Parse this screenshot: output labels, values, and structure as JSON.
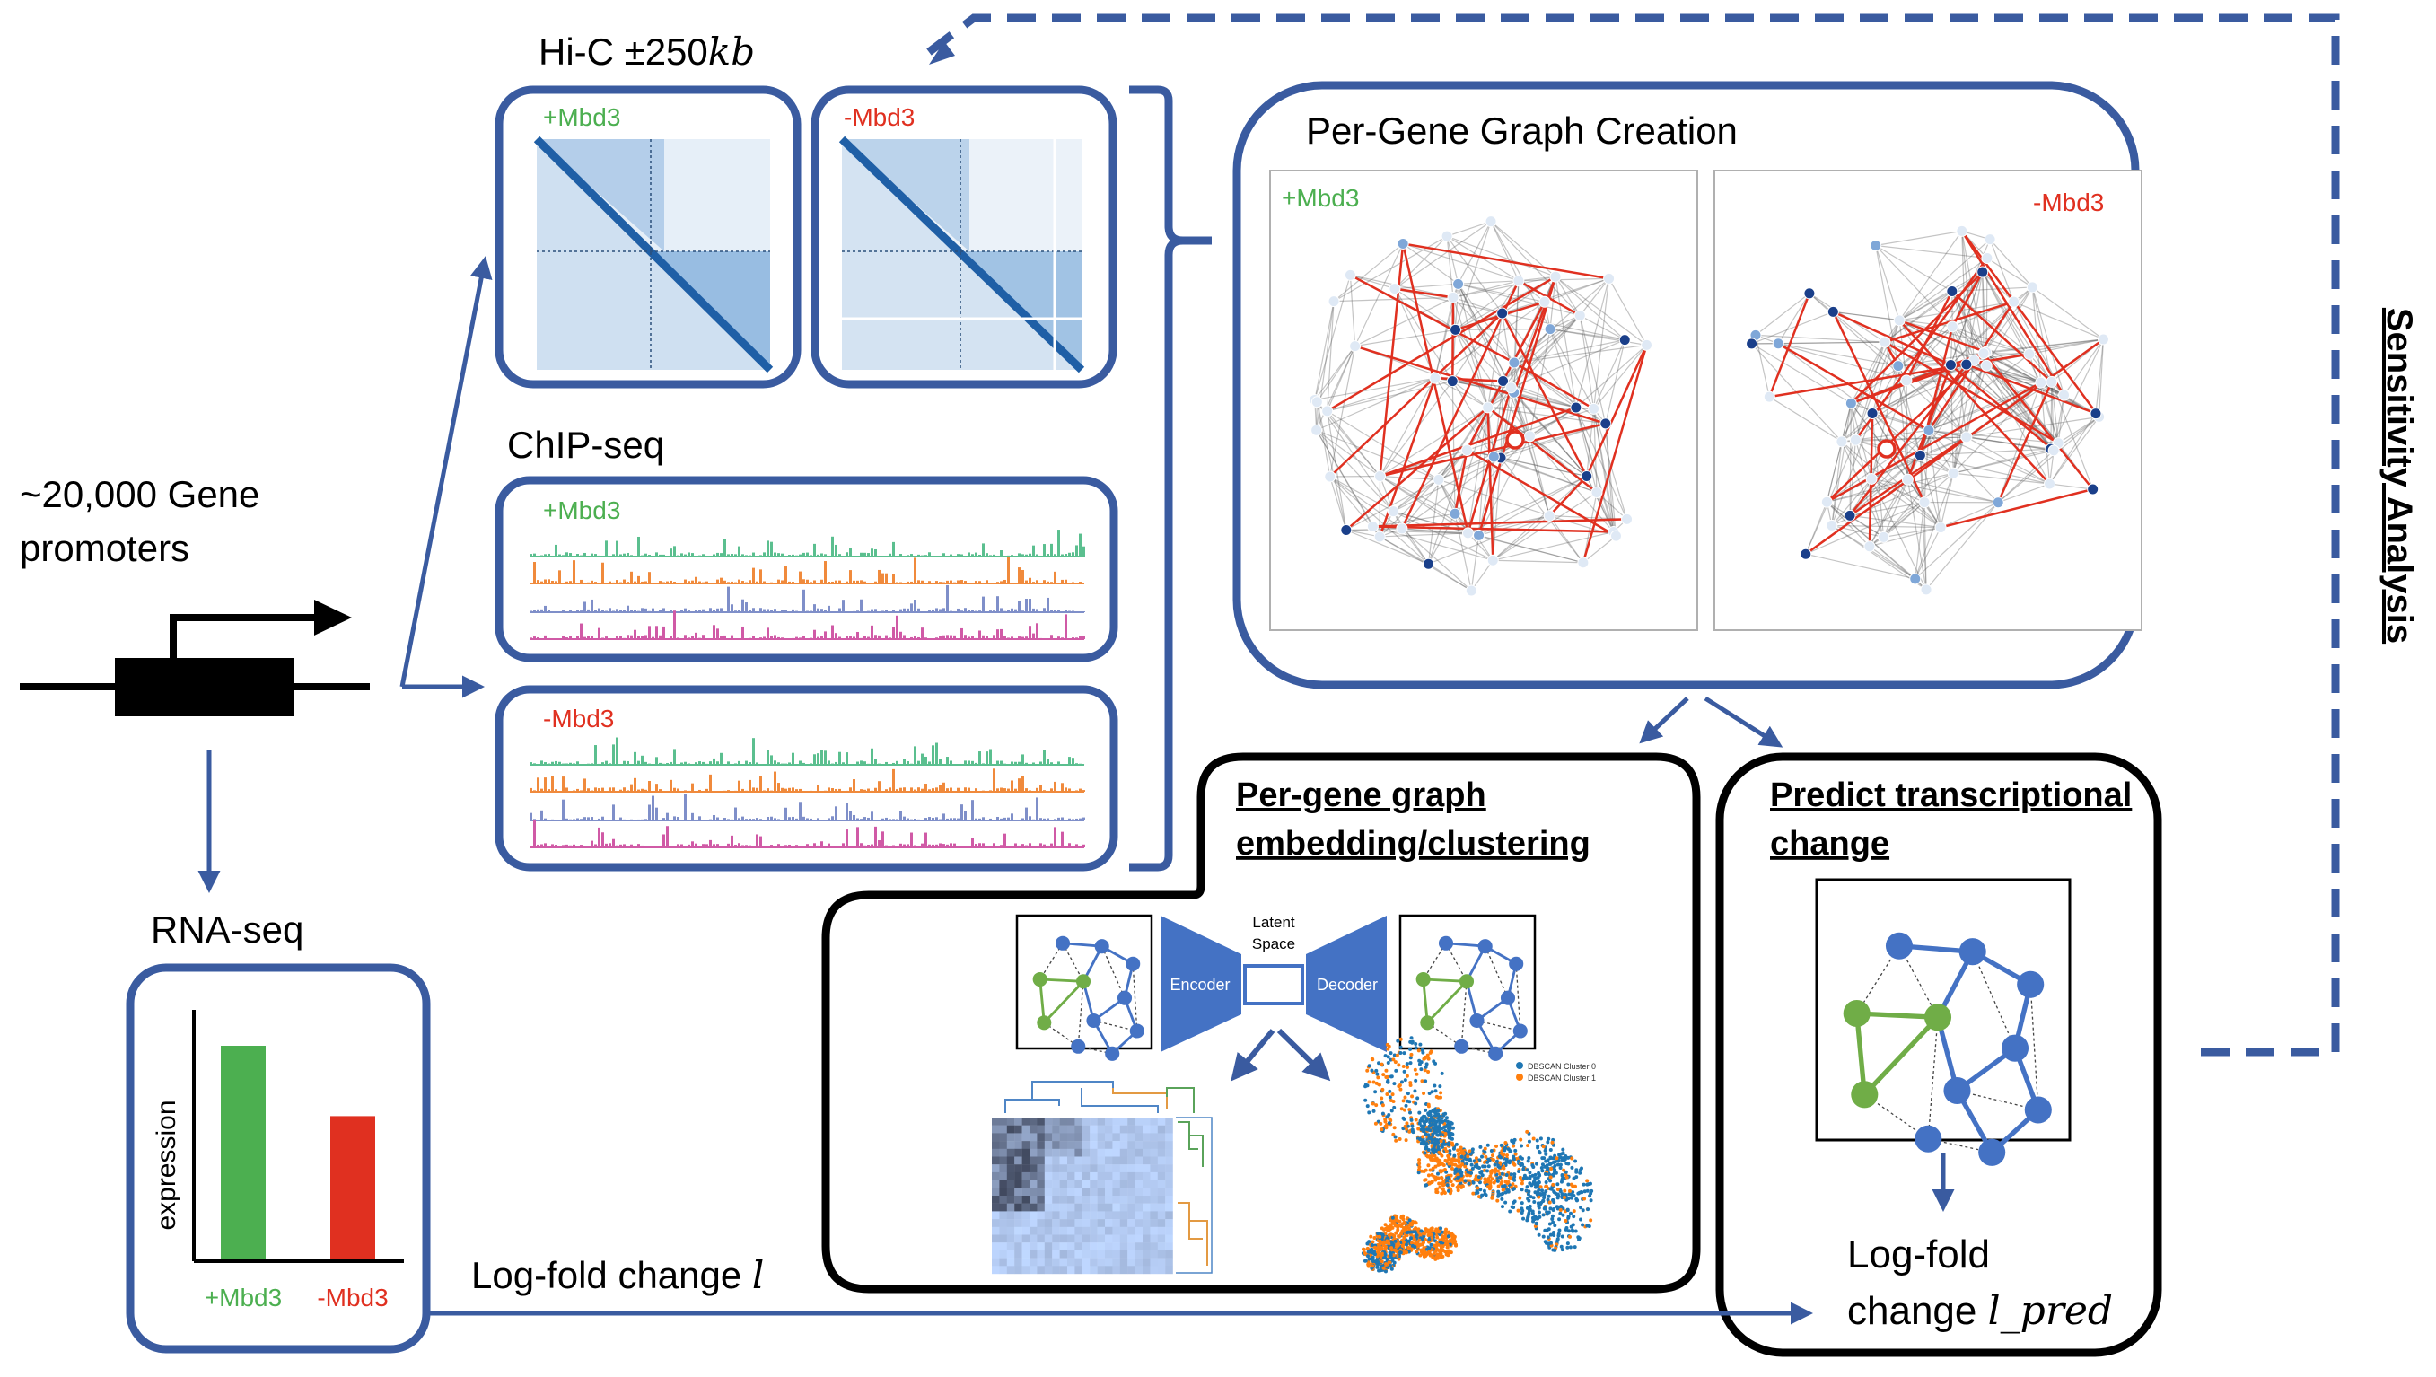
{
  "colors": {
    "blue": "#3a5ba0",
    "black": "#000000",
    "green": "#4caf50",
    "red": "#e03020",
    "graph_blue": "#4472c4",
    "graph_green": "#70ad47",
    "track_green": "#5bbf8f",
    "track_orange": "#f08a3c",
    "track_purple": "#7f8fc9",
    "track_pink": "#d05aa6"
  },
  "promoter": {
    "label_line1": "~20,000 Gene",
    "label_line2": "promoters"
  },
  "hic": {
    "title_prefix": "Hi-C ±250",
    "title_math": "kb",
    "plus_label": "+Mbd3",
    "minus_label": "-Mbd3"
  },
  "chip": {
    "title": "ChIP-seq",
    "plus_label": "+Mbd3",
    "minus_label": "-Mbd3"
  },
  "graph_creation": {
    "title": "Per-Gene Graph Creation",
    "plus_label": "+Mbd3",
    "minus_label": "-Mbd3"
  },
  "embedding": {
    "title_line1": "Per-gene graph",
    "title_line2": "embedding/clustering",
    "encoder": "Encoder",
    "decoder": "Decoder",
    "latent_line1": "Latent",
    "latent_line2": "Space",
    "legend_0": "DBSCAN Cluster 0",
    "legend_1": "DBSCAN Cluster 1"
  },
  "predict": {
    "title_line1": "Predict transcriptional",
    "title_line2": "change",
    "output_line1": "Log-fold",
    "output_prefix": "change ",
    "output_math": "l_pred"
  },
  "rnaseq": {
    "title": "RNA-seq",
    "ylabel": "expression",
    "bars": [
      {
        "label": "+Mbd3",
        "value": 0.85,
        "color": "#4caf50"
      },
      {
        "label": "-Mbd3",
        "value": 0.57,
        "color": "#e03020"
      }
    ]
  },
  "logfold": {
    "prefix": "Log-fold change ",
    "math": "l"
  },
  "sensitivity": {
    "label": "Sensitivity Analysis"
  }
}
